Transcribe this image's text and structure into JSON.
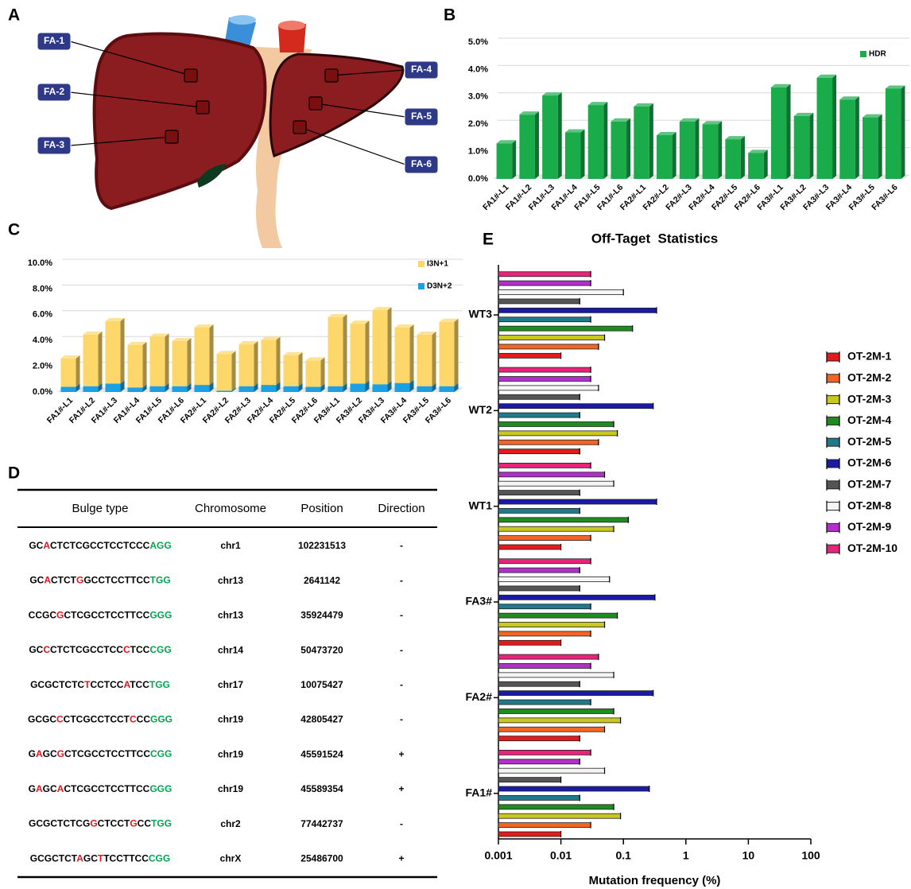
{
  "panel_labels": [
    "A",
    "B",
    "C",
    "D",
    "E"
  ],
  "diagram": {
    "labels": [
      "FA-1",
      "FA-2",
      "FA-3",
      "FA-4",
      "FA-5",
      "FA-6"
    ]
  },
  "chart_data": [
    {
      "type": "bar",
      "categories": [
        "FA1#-L1",
        "FA1#-L2",
        "FA1#-L3",
        "FA1#-L4",
        "FA1#-L5",
        "FA1#-L6",
        "FA2#-L1",
        "FA2#-L2",
        "FA2#-L3",
        "FA2#-L4",
        "FA2#-L5",
        "FA2#-L6",
        "FA3#-L1",
        "FA3#-L2",
        "FA3#-L3",
        "FA3#-L4",
        "FA3#-L5",
        "FA3#-L6"
      ],
      "series": [
        {
          "name": "HDR",
          "color": "#1aab4b",
          "values": [
            1.3,
            2.35,
            3.05,
            1.7,
            2.7,
            2.1,
            2.65,
            1.6,
            2.1,
            2.0,
            1.45,
            0.95,
            3.35,
            2.3,
            3.7,
            2.9,
            2.25,
            3.3
          ]
        }
      ],
      "ylim": [
        0,
        5
      ],
      "yticks": [
        {
          "value": 0,
          "label": "0.0%"
        },
        {
          "value": 1,
          "label": "1.0%"
        },
        {
          "value": 2,
          "label": "2.0%"
        },
        {
          "value": 3,
          "label": "3.0%"
        },
        {
          "value": 4,
          "label": "4.0%"
        },
        {
          "value": 5,
          "label": "5.0%"
        }
      ],
      "grid": true,
      "legend": "upper right"
    },
    {
      "type": "stacked_bar",
      "categories": [
        "FA1#-L1",
        "FA1#-L2",
        "FA1#-L3",
        "FA1#-L4",
        "FA1#-L5",
        "FA1#-L6",
        "FA2#-L1",
        "FA2#-L2",
        "FA2#-L3",
        "FA2#-L4",
        "FA2#-L5",
        "FA2#-L6",
        "FA3#-L1",
        "FA3#-L2",
        "FA3#-L3",
        "FA3#-L4",
        "FA3#-L5",
        "FA3#-L6"
      ],
      "series": [
        {
          "name": "D3N+2",
          "color": "#1ba1e2",
          "values": [
            0.4,
            0.45,
            0.65,
            0.35,
            0.45,
            0.45,
            0.55,
            0.1,
            0.45,
            0.55,
            0.45,
            0.4,
            0.45,
            0.65,
            0.6,
            0.7,
            0.45,
            0.45
          ]
        },
        {
          "name": "I3N+1",
          "color": "#fdd76a",
          "values": [
            2.2,
            4.0,
            4.85,
            3.3,
            3.85,
            3.5,
            4.45,
            2.85,
            3.25,
            3.5,
            2.4,
            2.05,
            5.35,
            4.65,
            5.75,
            4.3,
            4.0,
            5.0
          ]
        }
      ],
      "ylim": [
        0,
        10
      ],
      "yticks": [
        {
          "value": 0,
          "label": "0.0%"
        },
        {
          "value": 2,
          "label": "2.0%"
        },
        {
          "value": 4,
          "label": "4.0%"
        },
        {
          "value": 6,
          "label": "6.0%"
        },
        {
          "value": 8,
          "label": "8.0%"
        },
        {
          "value": 10,
          "label": "10.0%"
        }
      ],
      "grid": true,
      "legend": "upper right"
    },
    {
      "type": "horizontal_bar",
      "title": "Off-Taget  Statistics",
      "xlabel": "Mutation frequency (%)",
      "categories": [
        "FA1#",
        "FA2#",
        "FA3#",
        "WT1",
        "WT2",
        "WT3"
      ],
      "series": [
        {
          "name": "OT-2M-1",
          "color": "#e41a1c",
          "values": [
            0.01,
            0.02,
            0.01,
            0.01,
            0.02,
            0.01
          ]
        },
        {
          "name": "OT-2M-2",
          "color": "#f26522",
          "values": [
            0.03,
            0.05,
            0.03,
            0.03,
            0.04,
            0.04
          ]
        },
        {
          "name": "OT-2M-3",
          "color": "#c8c81e",
          "values": [
            0.09,
            0.09,
            0.05,
            0.07,
            0.08,
            0.05
          ]
        },
        {
          "name": "OT-2M-4",
          "color": "#1e8c1e",
          "values": [
            0.07,
            0.07,
            0.08,
            0.12,
            0.07,
            0.14
          ]
        },
        {
          "name": "OT-2M-5",
          "color": "#1f7a8c",
          "values": [
            0.02,
            0.03,
            0.03,
            0.02,
            0.02,
            0.03
          ]
        },
        {
          "name": "OT-2M-6",
          "color": "#1a1aa6",
          "values": [
            0.26,
            0.3,
            0.32,
            0.34,
            0.3,
            0.34
          ]
        },
        {
          "name": "OT-2M-7",
          "color": "#555555",
          "values": [
            0.01,
            0.02,
            0.02,
            0.02,
            0.02,
            0.02
          ]
        },
        {
          "name": "OT-2M-8",
          "color": "#f5f5f5",
          "values": [
            0.05,
            0.07,
            0.06,
            0.07,
            0.04,
            0.1
          ]
        },
        {
          "name": "OT-2M-9",
          "color": "#b030c8",
          "values": [
            0.02,
            0.03,
            0.02,
            0.05,
            0.03,
            0.03
          ]
        },
        {
          "name": "OT-2M-10",
          "color": "#e8237a",
          "values": [
            0.03,
            0.04,
            0.03,
            0.03,
            0.03,
            0.03
          ]
        }
      ],
      "xlim": [
        0.001,
        100
      ],
      "xticks": [
        0.001,
        0.01,
        0.1,
        1,
        10,
        100
      ],
      "xscale": "log",
      "legend": "right"
    }
  ],
  "table": {
    "header": [
      "Bulge type",
      "Chromosome",
      "Position",
      "Direction"
    ],
    "rows": [
      [
        [
          {
            "text": "GC",
            "color": "#000000"
          },
          {
            "text": "A",
            "color": "#e8141c"
          },
          {
            "text": "CTCTCGCCTCCTCCC",
            "color": "#000000"
          },
          {
            "text": "AGG",
            "color": "#00a651"
          }
        ],
        "chr1",
        102231513,
        "-"
      ],
      [
        [
          {
            "text": "GC",
            "color": "#000000"
          },
          {
            "text": "A",
            "color": "#e8141c"
          },
          {
            "text": "CTCT",
            "color": "#000000"
          },
          {
            "text": "G",
            "color": "#e8141c"
          },
          {
            "text": "GCCTCCTTCC",
            "color": "#000000"
          },
          {
            "text": "TGG",
            "color": "#00a651"
          }
        ],
        "chr13",
        2641142,
        "-"
      ],
      [
        [
          {
            "text": "CCGC",
            "color": "#000000"
          },
          {
            "text": "G",
            "color": "#e8141c"
          },
          {
            "text": "CTCGCCTCCTTCC",
            "color": "#000000"
          },
          {
            "text": "GGG",
            "color": "#00a651"
          }
        ],
        "chr13",
        35924479,
        "-"
      ],
      [
        [
          {
            "text": "GC",
            "color": "#000000"
          },
          {
            "text": "C",
            "color": "#e8141c"
          },
          {
            "text": "CTCTCGCCTCC",
            "color": "#000000"
          },
          {
            "text": "C",
            "color": "#e8141c"
          },
          {
            "text": "TCC",
            "color": "#000000"
          },
          {
            "text": "CGG",
            "color": "#00a651"
          }
        ],
        "chr14",
        50473720,
        "-"
      ],
      [
        [
          {
            "text": "GCGCTCTC",
            "color": "#000000"
          },
          {
            "text": "T",
            "color": "#e8141c"
          },
          {
            "text": "CCTCC",
            "color": "#000000"
          },
          {
            "text": "A",
            "color": "#e8141c"
          },
          {
            "text": "TCC",
            "color": "#000000"
          },
          {
            "text": "TGG",
            "color": "#00a651"
          }
        ],
        "chr17",
        10075427,
        "-"
      ],
      [
        [
          {
            "text": "GCGC",
            "color": "#000000"
          },
          {
            "text": "C",
            "color": "#e8141c"
          },
          {
            "text": "CTCGCCTCCT",
            "color": "#000000"
          },
          {
            "text": "C",
            "color": "#e8141c"
          },
          {
            "text": "CC",
            "color": "#000000"
          },
          {
            "text": "GGG",
            "color": "#00a651"
          }
        ],
        "chr19",
        42805427,
        "-"
      ],
      [
        [
          {
            "text": "G",
            "color": "#000000"
          },
          {
            "text": "A",
            "color": "#e8141c"
          },
          {
            "text": "GC",
            "color": "#000000"
          },
          {
            "text": "G",
            "color": "#e8141c"
          },
          {
            "text": "CTCGCCTCCTTCC",
            "color": "#000000"
          },
          {
            "text": "CGG",
            "color": "#00a651"
          }
        ],
        "chr19",
        45591524,
        "+"
      ],
      [
        [
          {
            "text": "G",
            "color": "#000000"
          },
          {
            "text": "A",
            "color": "#e8141c"
          },
          {
            "text": "GC",
            "color": "#000000"
          },
          {
            "text": "A",
            "color": "#e8141c"
          },
          {
            "text": "CTCGCCTCCTTCC",
            "color": "#000000"
          },
          {
            "text": "GGG",
            "color": "#00a651"
          }
        ],
        "chr19",
        45589354,
        "+"
      ],
      [
        [
          {
            "text": "GCGCTCTCG",
            "color": "#000000"
          },
          {
            "text": "G",
            "color": "#e8141c"
          },
          {
            "text": "CTCCT",
            "color": "#000000"
          },
          {
            "text": "G",
            "color": "#e8141c"
          },
          {
            "text": "CC",
            "color": "#000000"
          },
          {
            "text": "TGG",
            "color": "#00a651"
          }
        ],
        "chr2",
        77442737,
        "-"
      ],
      [
        [
          {
            "text": "GCGCTCT",
            "color": "#000000"
          },
          {
            "text": "A",
            "color": "#e8141c"
          },
          {
            "text": "GC",
            "color": "#000000"
          },
          {
            "text": "T",
            "color": "#e8141c"
          },
          {
            "text": "TCCTTCC",
            "color": "#000000"
          },
          {
            "text": "CGG",
            "color": "#00a651"
          }
        ],
        "chrX",
        25486700,
        "+"
      ]
    ]
  }
}
